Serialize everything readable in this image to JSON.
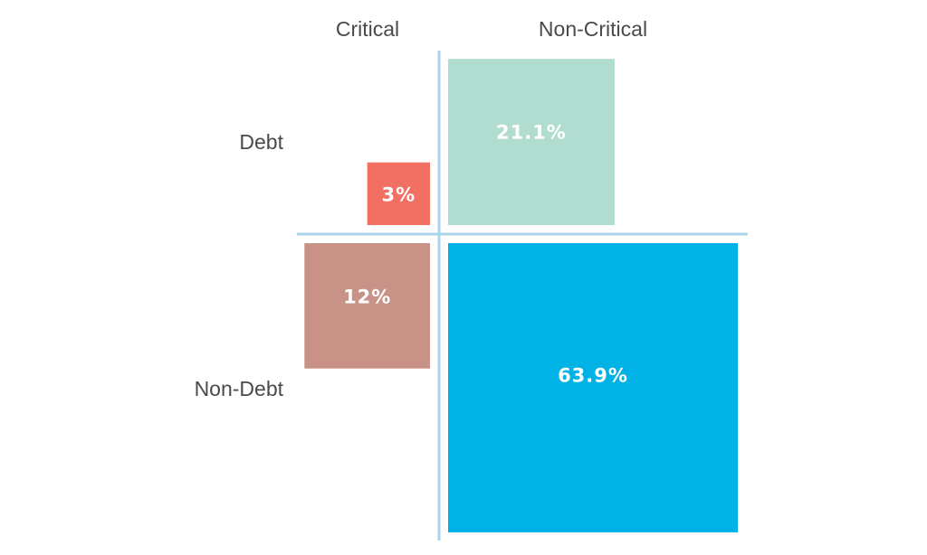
{
  "chart_data": {
    "type": "quadrant-squares",
    "columns": [
      "Critical",
      "Non-Critical"
    ],
    "rows": [
      "Debt",
      "Non-Debt"
    ],
    "cells": [
      {
        "row": "Debt",
        "column": "Critical",
        "value": 3,
        "label": "3%",
        "color": "#f26f63"
      },
      {
        "row": "Debt",
        "column": "Non-Critical",
        "value": 21.1,
        "label": "21.1%",
        "color": "#b0ddcf"
      },
      {
        "row": "Non-Debt",
        "column": "Critical",
        "value": 12,
        "label": "12%",
        "color": "#c99287"
      },
      {
        "row": "Non-Debt",
        "column": "Non-Critical",
        "value": 63.9,
        "label": "63.9%",
        "color": "#00b2e5"
      }
    ],
    "divider_color": "#a9d4ea"
  }
}
